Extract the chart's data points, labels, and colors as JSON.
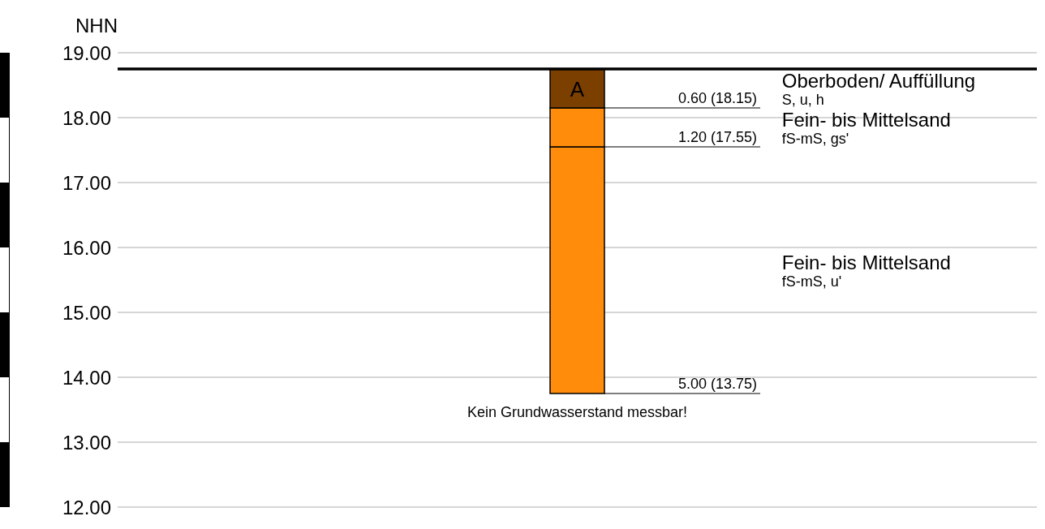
{
  "chart_data": {
    "type": "bar",
    "ylabel": "NHN",
    "categories": [
      "A"
    ],
    "series": [
      {
        "name": "Fein- bis Mittelsand\nfS-mS, u'",
        "color": "#ff8c0a",
        "base": [
          13.75
        ],
        "values": [
          3.8
        ]
      },
      {
        "name": "Fein- bis Mittelsand\nfS-mS, gs'",
        "color": "#ff8c0a",
        "base": [
          17.55
        ],
        "values": [
          0.6
        ]
      },
      {
        "name": "Oberboden/ Auffüllung\nS, u, h",
        "color": "#7b3f00",
        "base": [
          18.15
        ],
        "values": [
          0.6
        ]
      }
    ],
    "ylim": [
      12,
      19
    ],
    "yticks": [
      {
        "value": 12,
        "label": "12.00"
      },
      {
        "value": 13,
        "label": "13.00"
      },
      {
        "value": 14,
        "label": "14.00"
      },
      {
        "value": 15,
        "label": "15.00"
      },
      {
        "value": 16,
        "label": "16.00"
      },
      {
        "value": 17,
        "label": "17.00"
      },
      {
        "value": 18,
        "label": "18.00"
      },
      {
        "value": 19,
        "label": "19.00"
      }
    ],
    "grid": "y",
    "ref_lines": [
      {
        "axis": "y",
        "value": 18.75,
        "color": "#000000"
      }
    ],
    "annotations": [
      "0.60 (18.15)",
      "1.20 (17.55)",
      "5.00 (13.75)",
      "Kein Grundwasserstand messbar!"
    ]
  }
}
